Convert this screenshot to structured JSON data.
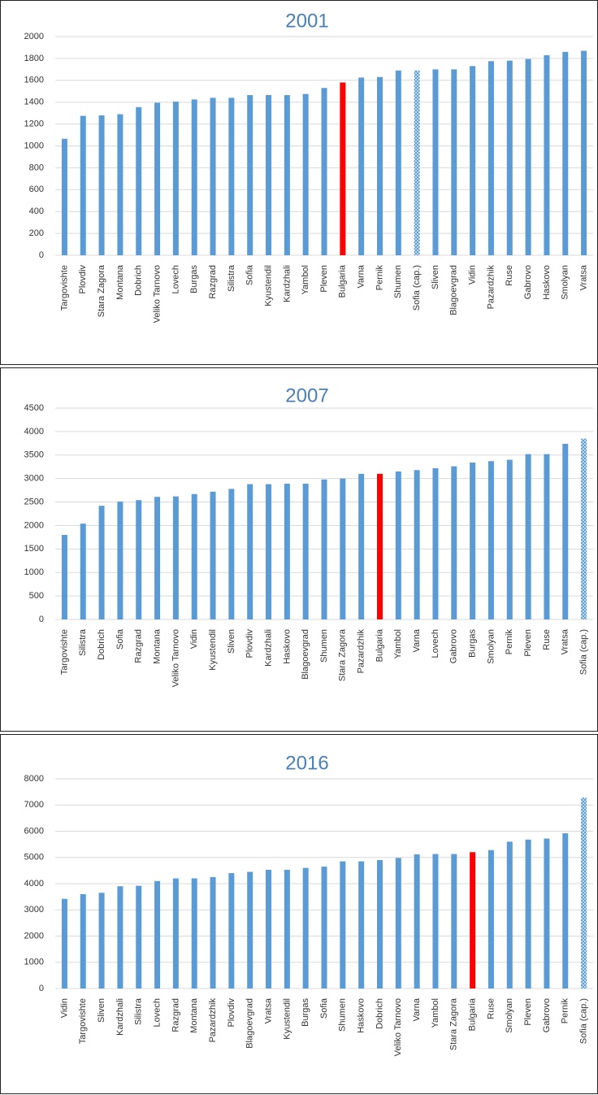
{
  "chart_data": [
    {
      "type": "bar",
      "title": "2001",
      "categories": [
        "Targovishte",
        "Plovdiv",
        "Stara Zagora",
        "Montana",
        "Dobrich",
        "Veliko Tarnovo",
        "Lovech",
        "Burgas",
        "Razgrad",
        "Silistra",
        "Sofia",
        "Kyustendil",
        "Kardzhali",
        "Yambol",
        "Pleven",
        "Bulgaria",
        "Varna",
        "Pernik",
        "Shumen",
        "Sofia (cap.)",
        "Sliven",
        "Blagoevgrad",
        "Vidin",
        "Pazardzhik",
        "Ruse",
        "Gabrovo",
        "Haskovo",
        "Smolyan",
        "Vratsa"
      ],
      "values": [
        1065,
        1275,
        1280,
        1290,
        1355,
        1395,
        1405,
        1425,
        1440,
        1440,
        1465,
        1465,
        1465,
        1475,
        1530,
        1580,
        1625,
        1630,
        1690,
        1690,
        1700,
        1700,
        1730,
        1775,
        1780,
        1795,
        1830,
        1860,
        1870
      ],
      "colors": [
        "#5b9bd5",
        "#5b9bd5",
        "#5b9bd5",
        "#5b9bd5",
        "#5b9bd5",
        "#5b9bd5",
        "#5b9bd5",
        "#5b9bd5",
        "#5b9bd5",
        "#5b9bd5",
        "#5b9bd5",
        "#5b9bd5",
        "#5b9bd5",
        "#5b9bd5",
        "#5b9bd5",
        "#ff0000",
        "#5b9bd5",
        "#5b9bd5",
        "#5b9bd5",
        "#5b9bd5",
        "#5b9bd5",
        "#5b9bd5",
        "#5b9bd5",
        "#5b9bd5",
        "#5b9bd5",
        "#5b9bd5",
        "#5b9bd5",
        "#5b9bd5",
        "#5b9bd5"
      ],
      "patterns": [
        "solid",
        "solid",
        "solid",
        "solid",
        "solid",
        "solid",
        "solid",
        "solid",
        "solid",
        "solid",
        "solid",
        "solid",
        "solid",
        "solid",
        "solid",
        "solid",
        "solid",
        "solid",
        "solid",
        "crosshatch",
        "solid",
        "solid",
        "solid",
        "solid",
        "solid",
        "solid",
        "solid",
        "solid",
        "solid"
      ],
      "ylim": [
        0,
        2000
      ],
      "yticks": [
        0,
        200,
        400,
        600,
        800,
        1000,
        1200,
        1400,
        1600,
        1800,
        2000
      ],
      "grid": true
    },
    {
      "type": "bar",
      "title": "2007",
      "categories": [
        "Targovishte",
        "Silistra",
        "Dobrich",
        "Sofia",
        "Razgrad",
        "Montana",
        "Veliko Tarnovo",
        "Vidin",
        "Kyustendil",
        "Sliven",
        "Plovdiv",
        "Kardzhali",
        "Haskovo",
        "Blagoevgrad",
        "Shumen",
        "Stara Zagora",
        "Pazardzhik",
        "Bulgaria",
        "Yambol",
        "Varna",
        "Lovech",
        "Gabrovo",
        "Burgas",
        "Smolyan",
        "Pernik",
        "Pleven",
        "Ruse",
        "Vratsa",
        "Sofia (cap.)"
      ],
      "values": [
        1800,
        2040,
        2420,
        2510,
        2540,
        2610,
        2620,
        2670,
        2720,
        2780,
        2880,
        2880,
        2890,
        2890,
        2980,
        3000,
        3100,
        3100,
        3150,
        3180,
        3220,
        3260,
        3340,
        3370,
        3400,
        3520,
        3520,
        3740,
        3850
      ],
      "colors": [
        "#5b9bd5",
        "#5b9bd5",
        "#5b9bd5",
        "#5b9bd5",
        "#5b9bd5",
        "#5b9bd5",
        "#5b9bd5",
        "#5b9bd5",
        "#5b9bd5",
        "#5b9bd5",
        "#5b9bd5",
        "#5b9bd5",
        "#5b9bd5",
        "#5b9bd5",
        "#5b9bd5",
        "#5b9bd5",
        "#5b9bd5",
        "#ff0000",
        "#5b9bd5",
        "#5b9bd5",
        "#5b9bd5",
        "#5b9bd5",
        "#5b9bd5",
        "#5b9bd5",
        "#5b9bd5",
        "#5b9bd5",
        "#5b9bd5",
        "#5b9bd5",
        "#5b9bd5"
      ],
      "patterns": [
        "solid",
        "solid",
        "solid",
        "solid",
        "solid",
        "solid",
        "solid",
        "solid",
        "solid",
        "solid",
        "solid",
        "solid",
        "solid",
        "solid",
        "solid",
        "solid",
        "solid",
        "solid",
        "solid",
        "solid",
        "solid",
        "solid",
        "solid",
        "solid",
        "solid",
        "solid",
        "solid",
        "solid",
        "crosshatch"
      ],
      "ylim": [
        0,
        4500
      ],
      "yticks": [
        0,
        500,
        1000,
        1500,
        2000,
        2500,
        3000,
        3500,
        4000,
        4500
      ],
      "grid": true
    },
    {
      "type": "bar",
      "title": "2016",
      "categories": [
        "Vidin",
        "Targovishte",
        "Sliven",
        "Kardzhali",
        "Silistra",
        "Lovech",
        "Razgrad",
        "Montana",
        "Pazardzhik",
        "Plovdiv",
        "Blagoevgrad",
        "Vratsa",
        "Kyustendil",
        "Burgas",
        "Sofia",
        "Shumen",
        "Haskovo",
        "Dobrich",
        "Veliko Tarnovo",
        "Varna",
        "Yambol",
        "Stara Zagora",
        "Bulgaria",
        "Ruse",
        "Smolyan",
        "Pleven",
        "Gabrovo",
        "Pernik",
        "Sofia (cap.)"
      ],
      "values": [
        3420,
        3600,
        3650,
        3900,
        3920,
        4100,
        4200,
        4200,
        4250,
        4400,
        4450,
        4530,
        4530,
        4600,
        4650,
        4850,
        4850,
        4900,
        4980,
        5120,
        5130,
        5130,
        5200,
        5280,
        5600,
        5680,
        5720,
        5920,
        7280
      ],
      "colors": [
        "#5b9bd5",
        "#5b9bd5",
        "#5b9bd5",
        "#5b9bd5",
        "#5b9bd5",
        "#5b9bd5",
        "#5b9bd5",
        "#5b9bd5",
        "#5b9bd5",
        "#5b9bd5",
        "#5b9bd5",
        "#5b9bd5",
        "#5b9bd5",
        "#5b9bd5",
        "#5b9bd5",
        "#5b9bd5",
        "#5b9bd5",
        "#5b9bd5",
        "#5b9bd5",
        "#5b9bd5",
        "#5b9bd5",
        "#5b9bd5",
        "#ff0000",
        "#5b9bd5",
        "#5b9bd5",
        "#5b9bd5",
        "#5b9bd5",
        "#5b9bd5",
        "#5b9bd5"
      ],
      "patterns": [
        "solid",
        "solid",
        "solid",
        "solid",
        "solid",
        "solid",
        "solid",
        "solid",
        "solid",
        "solid",
        "solid",
        "solid",
        "solid",
        "solid",
        "solid",
        "solid",
        "solid",
        "solid",
        "solid",
        "solid",
        "solid",
        "solid",
        "solid",
        "solid",
        "solid",
        "solid",
        "solid",
        "solid",
        "crosshatch"
      ],
      "ylim": [
        0,
        8000
      ],
      "yticks": [
        0,
        1000,
        2000,
        3000,
        4000,
        5000,
        6000,
        7000,
        8000
      ],
      "grid": true
    }
  ]
}
